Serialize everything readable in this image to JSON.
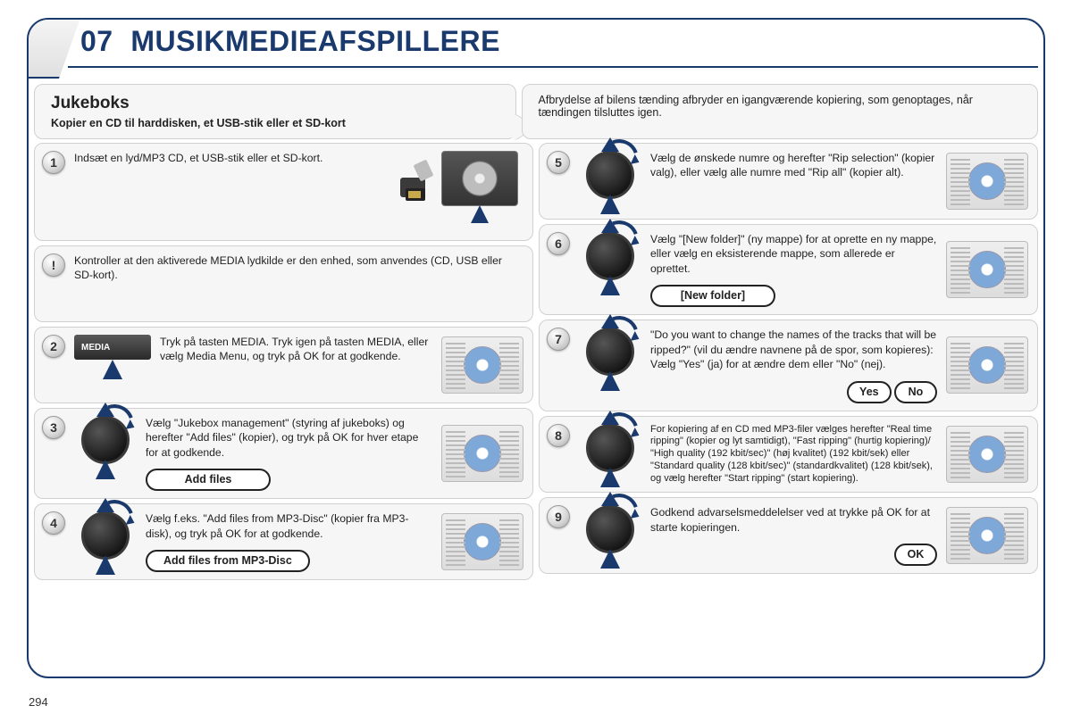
{
  "page_number": "294",
  "header": {
    "num": "07",
    "title": "MUSIKMEDIEAFSPILLERE"
  },
  "intro": {
    "left_title": "Jukeboks",
    "left_sub": "Kopier en CD til harddisken, et USB-stik eller et SD-kort",
    "right_text": "Afbrydelse af bilens tænding afbryder en igangværende kopiering, som genoptages, når tændingen tilsluttes igen."
  },
  "left_steps": [
    {
      "num": "1",
      "text": "Indsæt en lyd/MP3 CD, et USB-stik eller et SD-kort.",
      "graphic": "media-inserts"
    },
    {
      "num": "!",
      "text": "Kontroller at den aktiverede MEDIA lydkilde er den enhed, som anvendes (CD, USB eller SD-kort).",
      "graphic": "none",
      "no_thumb": true
    },
    {
      "num": "2",
      "text": "Tryk på tasten MEDIA. Tryk igen på tasten MEDIA, eller vælg Media Menu, og tryk på OK for at godkende.",
      "graphic": "media-btn",
      "media_label": "MEDIA"
    },
    {
      "num": "3",
      "text": "Vælg \"Jukebox management\" (styring af jukeboks) og herefter \"Add files\" (kopier), og tryk på OK for hver etape for at godkende.",
      "graphic": "dial",
      "pill": "Add files"
    },
    {
      "num": "4",
      "text": "Vælg f.eks. \"Add files from MP3-Disc\" (kopier fra MP3-disk), og tryk på OK for at godkende.",
      "graphic": "dial",
      "pill": "Add files from MP3-Disc"
    }
  ],
  "right_steps": [
    {
      "num": "5",
      "text": "Vælg de ønskede numre og herefter \"Rip selection\" (kopier valg), eller vælg alle numre med \"Rip all\" (kopier alt).",
      "graphic": "dial"
    },
    {
      "num": "6",
      "text": "Vælg \"[New folder]\" (ny mappe) for at oprette en ny mappe, eller vælg en eksisterende mappe, som allerede er oprettet.",
      "graphic": "dial",
      "pill": "[New folder]"
    },
    {
      "num": "7",
      "text": "\"Do you want to change the names of the tracks that will be ripped?\" (vil du ændre navnene på de spor, som kopieres): Vælg \"Yes\" (ja) for at ændre dem eller \"No\" (nej).",
      "graphic": "dial",
      "pills": [
        "Yes",
        "No"
      ]
    },
    {
      "num": "8",
      "text": "For kopiering af en CD med MP3-filer vælges herefter \"Real time ripping\" (kopier og lyt samtidigt), \"Fast ripping\" (hurtig kopiering)/ \"High quality (192 kbit/sec)\" (høj kvalitet) (192 kbit/sek) eller \"Standard quality (128 kbit/sec)\" (standardkvalitet) (128 kbit/sek), og vælg herefter \"Start ripping\" (start kopiering).",
      "graphic": "dial",
      "small": true
    },
    {
      "num": "9",
      "text": "Godkend advarselsmeddelelser ved at trykke på OK for at starte kopieringen.",
      "graphic": "dial",
      "pill_right": "OK"
    }
  ],
  "colors": {
    "brand": "#1a3a6e",
    "panel_bg": "#f6f6f6",
    "panel_border": "#d0d0d0",
    "disc_blue": "#7ea8d8"
  }
}
